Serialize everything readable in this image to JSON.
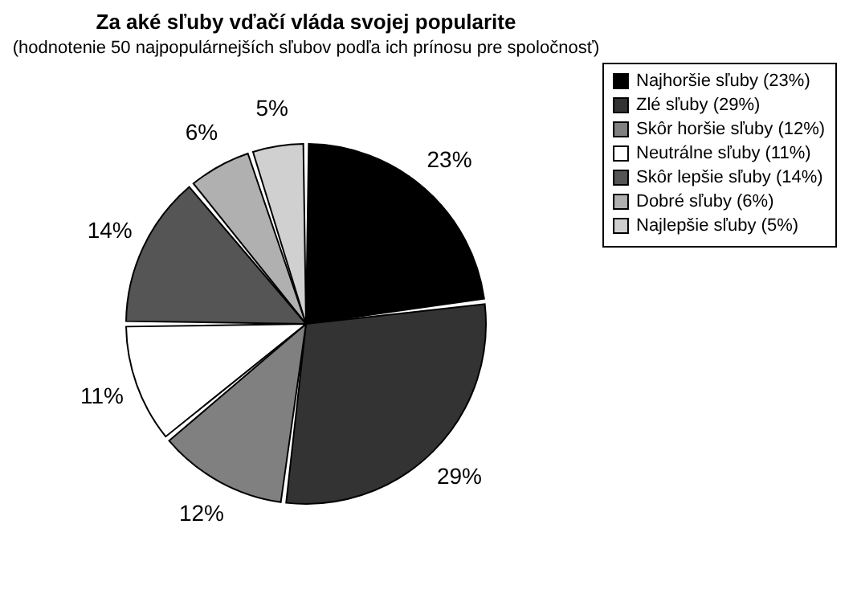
{
  "chart_data": {
    "type": "pie",
    "title": "Za aké sľuby vďačí vláda svojej popularite",
    "subtitle": "(hodnotenie 50 najpopulárnejších sľubov podľa ich prínosu pre spoločnosť)",
    "categories": [
      "Najhoršie sľuby (23%)",
      "Zlé sľuby (29%)",
      "Skôr horšie sľuby (12%)",
      "Neutrálne sľuby (11%)",
      "Skôr lepšie sľuby (14%)",
      "Dobré sľuby (6%)",
      "Najlepšie sľuby (5%)"
    ],
    "values": [
      23,
      29,
      12,
      11,
      14,
      6,
      5
    ],
    "colors": [
      "#000000",
      "#333333",
      "#808080",
      "#ffffff",
      "#555555",
      "#b0b0b0",
      "#d0d0d0"
    ],
    "value_labels": [
      "23%",
      "29%",
      "12%",
      "11%",
      "14%",
      "6%",
      "5%"
    ],
    "legend": "right"
  }
}
